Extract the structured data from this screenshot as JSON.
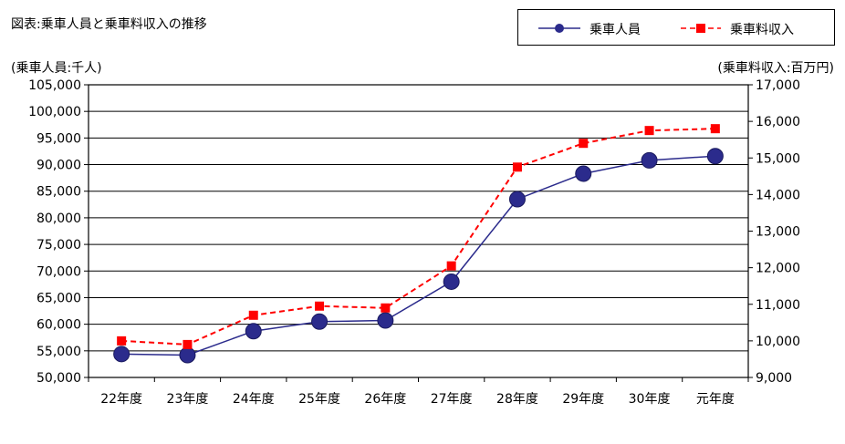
{
  "chart_data": {
    "type": "line",
    "title": "図表:乗車人員と乗車料収入の推移",
    "categories": [
      "22年度",
      "23年度",
      "24年度",
      "25年度",
      "26年度",
      "27年度",
      "28年度",
      "29年度",
      "30年度",
      "元年度"
    ],
    "ylabel": "(乗車人員:千人)",
    "y2label": "(乗車料収入:百万円)",
    "ylim": [
      50000,
      105000
    ],
    "y2lim": [
      9000,
      17000
    ],
    "yticks": [
      "50,000",
      "55,000",
      "60,000",
      "65,000",
      "70,000",
      "75,000",
      "80,000",
      "85,000",
      "90,000",
      "95,000",
      "100,000",
      "105,000"
    ],
    "y2ticks": [
      "9,000",
      "10,000",
      "11,000",
      "12,000",
      "13,000",
      "14,000",
      "15,000",
      "16,000",
      "17,000"
    ],
    "grid": true,
    "legend_position": "top-right",
    "series": [
      {
        "name": "乗車人員",
        "axis": "left",
        "color": "#2B2B8C",
        "marker": "circle",
        "line_style": "solid",
        "values": [
          54400,
          54200,
          58700,
          60500,
          60700,
          68000,
          83500,
          88300,
          90800,
          91600
        ]
      },
      {
        "name": "乗車料収入",
        "axis": "right",
        "color": "#FF0000",
        "marker": "square",
        "line_style": "dashed",
        "values": [
          10000,
          9900,
          10700,
          10950,
          10900,
          12050,
          14750,
          15400,
          15750,
          15800
        ]
      }
    ]
  }
}
